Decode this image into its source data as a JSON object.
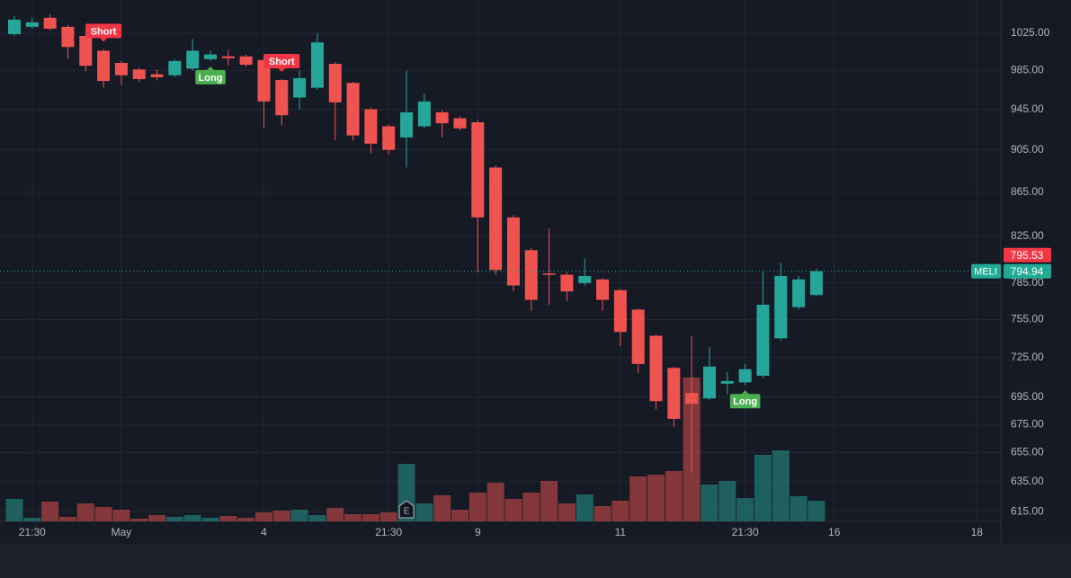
{
  "chart_data": {
    "type": "candlestick",
    "symbol": "MELI",
    "log_scale": true,
    "grid": true,
    "up_color": "#26a69a",
    "down_color": "#ef5350",
    "ylim": [
      608.6,
      1062
    ],
    "yticks": [
      {
        "value": 1025,
        "label": "1025.00"
      },
      {
        "value": 985,
        "label": "985.00"
      },
      {
        "value": 945,
        "label": "945.00"
      },
      {
        "value": 905,
        "label": "905.00"
      },
      {
        "value": 865,
        "label": "865.00"
      },
      {
        "value": 825,
        "label": "825.00"
      },
      {
        "value": 785,
        "label": "785.00"
      },
      {
        "value": 755,
        "label": "755.00"
      },
      {
        "value": 725,
        "label": "725.00"
      },
      {
        "value": 695,
        "label": "695.00"
      },
      {
        "value": 675,
        "label": "675.00"
      },
      {
        "value": 655,
        "label": "655.00"
      },
      {
        "value": 635,
        "label": "635.00"
      },
      {
        "value": 615,
        "label": "615.00"
      }
    ],
    "xticks": [
      {
        "value": 1,
        "label": "21:30"
      },
      {
        "value": 6,
        "label": "May"
      },
      {
        "value": 14,
        "label": "4"
      },
      {
        "value": 21,
        "label": "21:30"
      },
      {
        "value": 26,
        "label": "9"
      },
      {
        "value": 34,
        "label": "11"
      },
      {
        "value": 41,
        "label": "21:30"
      },
      {
        "value": 46,
        "label": "16"
      },
      {
        "value": 54,
        "label": "18"
      }
    ],
    "ohlc": [
      [
        1024,
        1044,
        1022,
        1040
      ],
      [
        1032,
        1042,
        1030,
        1037
      ],
      [
        1042,
        1046,
        1028,
        1030
      ],
      [
        1032,
        1034,
        997,
        1010
      ],
      [
        1022,
        1024,
        984,
        990
      ],
      [
        1006,
        1008,
        967,
        974
      ],
      [
        993,
        995,
        970,
        980
      ],
      [
        986,
        988,
        973,
        976
      ],
      [
        981,
        986,
        975,
        978
      ],
      [
        980,
        997,
        978,
        995
      ],
      [
        987,
        1019,
        985,
        1006
      ],
      [
        997,
        1006,
        995,
        1002
      ],
      [
        1000,
        1007,
        990,
        998
      ],
      [
        1000,
        1002,
        989,
        991
      ],
      [
        996,
        1001,
        927,
        953
      ],
      [
        975,
        976,
        929,
        939
      ],
      [
        957,
        985,
        945,
        977
      ],
      [
        967,
        1025,
        965,
        1015
      ],
      [
        992,
        994,
        914,
        952
      ],
      [
        972,
        973,
        914,
        919
      ],
      [
        945,
        947,
        902,
        911
      ],
      [
        928,
        930,
        900,
        905
      ],
      [
        917,
        985,
        888,
        942
      ],
      [
        928,
        961,
        926,
        953
      ],
      [
        942,
        944,
        917,
        931
      ],
      [
        936,
        938,
        924,
        926
      ],
      [
        932,
        934,
        794,
        842
      ],
      [
        888,
        890,
        792,
        796
      ],
      [
        842,
        844,
        778,
        783
      ],
      [
        813,
        815,
        762,
        771
      ],
      [
        793,
        832,
        767,
        792
      ],
      [
        792,
        794,
        770,
        778
      ],
      [
        785,
        806,
        783,
        791
      ],
      [
        788,
        789,
        762,
        771
      ],
      [
        779,
        780,
        734,
        745
      ],
      [
        763,
        764,
        713,
        720
      ],
      [
        742,
        743,
        686,
        692
      ],
      [
        717,
        718,
        673,
        679
      ],
      [
        698,
        742,
        641,
        690
      ],
      [
        694,
        733,
        693,
        718
      ],
      [
        705,
        714,
        697,
        707
      ],
      [
        706,
        720,
        704,
        716
      ],
      [
        711,
        795,
        709,
        767
      ],
      [
        740,
        802,
        738,
        791
      ],
      [
        765,
        791,
        763,
        788
      ],
      [
        775,
        797,
        774,
        794.94
      ]
    ],
    "volume": [
      25,
      4,
      22,
      5,
      20,
      16,
      13,
      3,
      7,
      5,
      7,
      4,
      6,
      4,
      10,
      12,
      13,
      7,
      15,
      8,
      8,
      10,
      64,
      20,
      29,
      13,
      32,
      43,
      25,
      32,
      45,
      20,
      30,
      17,
      23,
      50,
      52,
      56,
      160,
      41,
      45,
      26,
      74,
      79,
      28,
      23
    ],
    "annotations": [
      {
        "text": "Short",
        "index": 5,
        "position": "above",
        "color": "#f23645"
      },
      {
        "text": "Long",
        "index": 11,
        "position": "below",
        "color": "#4caf50"
      },
      {
        "text": "Short",
        "index": 15,
        "position": "above",
        "color": "#f23645"
      },
      {
        "text": "Long",
        "index": 41,
        "position": "below",
        "color": "#4caf50"
      }
    ],
    "events": [
      {
        "label": "E",
        "index": 22
      }
    ],
    "price_labels": [
      {
        "value": 795.53,
        "color": "#f23645"
      },
      {
        "value": 794.94,
        "color": "#22ab94"
      }
    ]
  }
}
